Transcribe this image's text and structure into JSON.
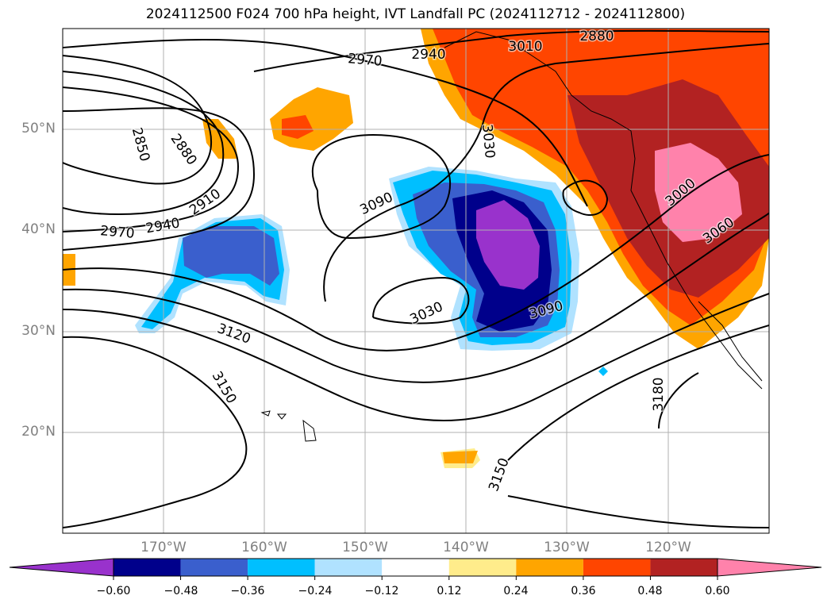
{
  "title": "2024112500 F024 700 hPa height, IVT Landfall PC (2024112712 - 2024112800)",
  "map": {
    "lat_labels": [
      "50°N",
      "40°N",
      "30°N",
      "20°N"
    ],
    "lon_labels": [
      "170°W",
      "160°W",
      "150°W",
      "140°W",
      "130°W",
      "120°W"
    ],
    "contour_labels": [
      "2850",
      "2880",
      "2910",
      "2940",
      "2970",
      "2940",
      "2970",
      "3010",
      "2880",
      "3030",
      "3090",
      "3000",
      "3060",
      "3030",
      "3090",
      "3120",
      "3150",
      "3150",
      "3180"
    ]
  },
  "colorbar": {
    "ticks": [
      "−0.60",
      "−0.48",
      "−0.36",
      "−0.24",
      "−0.12",
      "0.12",
      "0.24",
      "0.36",
      "0.48",
      "0.60"
    ],
    "colors": [
      "#9932CC",
      "#00008B",
      "#3A5FCD",
      "#00BFFF",
      "#B0E2FF",
      "#FFFFFF",
      "#FFEC8B",
      "#FFA500",
      "#FF4500",
      "#B22222",
      "#FF82AB"
    ]
  }
}
